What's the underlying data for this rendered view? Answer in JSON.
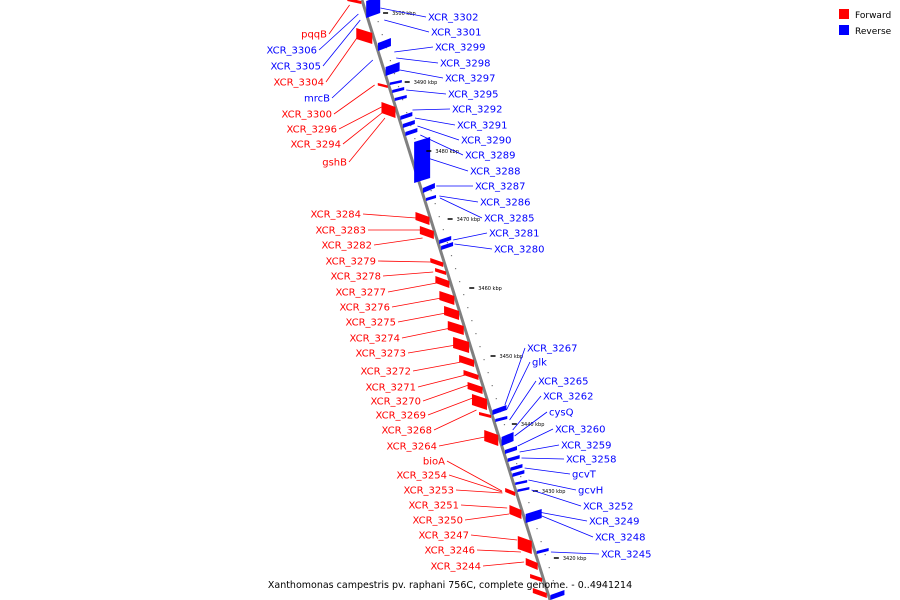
{
  "caption": "Xanthomonas campestris pv. raphani 756C, complete genome. - 0..4941214",
  "legend": [
    {
      "label": "Forward",
      "color": "#ff0000"
    },
    {
      "label": "Reverse",
      "color": "#0000ff"
    }
  ],
  "colors": {
    "forward": "#ff0000",
    "reverse": "#0000ff",
    "backbone": "#808080"
  },
  "ticks": [
    "3500 kbp",
    "3490 kbp",
    "3480 kbp",
    "3470 kbp",
    "3460 kbp",
    "3450 kbp",
    "3440 kbp",
    "3430 kbp",
    "3420 kbp"
  ],
  "genes_forward": [
    "pqqB",
    "XCR_3304",
    "XCR_3300",
    "XCR_3296",
    "XCR_3294",
    "gshB",
    "XCR_3284",
    "XCR_3283",
    "XCR_3282",
    "XCR_3279",
    "XCR_3278",
    "XCR_3277",
    "XCR_3276",
    "XCR_3275",
    "XCR_3274",
    "XCR_3273",
    "XCR_3272",
    "XCR_3271",
    "XCR_3270",
    "XCR_3269",
    "XCR_3268",
    "XCR_3264",
    "bioA",
    "XCR_3254",
    "XCR_3253",
    "XCR_3251",
    "XCR_3250",
    "XCR_3247",
    "XCR_3246",
    "XCR_3244"
  ],
  "genes_reverse_left": [
    "XCR_3306",
    "XCR_3305",
    "mrcB"
  ],
  "genes_reverse_right": [
    "XCR_3302",
    "XCR_3301",
    "XCR_3299",
    "XCR_3298",
    "XCR_3297",
    "XCR_3295",
    "XCR_3292",
    "XCR_3291",
    "XCR_3290",
    "XCR_3289",
    "XCR_3288",
    "XCR_3287",
    "XCR_3286",
    "XCR_3285",
    "XCR_3281",
    "XCR_3280",
    "XCR_3267",
    "glk",
    "XCR_3265",
    "XCR_3262",
    "cysQ",
    "XCR_3260",
    "XCR_3259",
    "XCR_3258",
    "gcvT",
    "gcvH",
    "XCR_3252",
    "XCR_3249",
    "XCR_3248",
    "XCR_3245"
  ]
}
